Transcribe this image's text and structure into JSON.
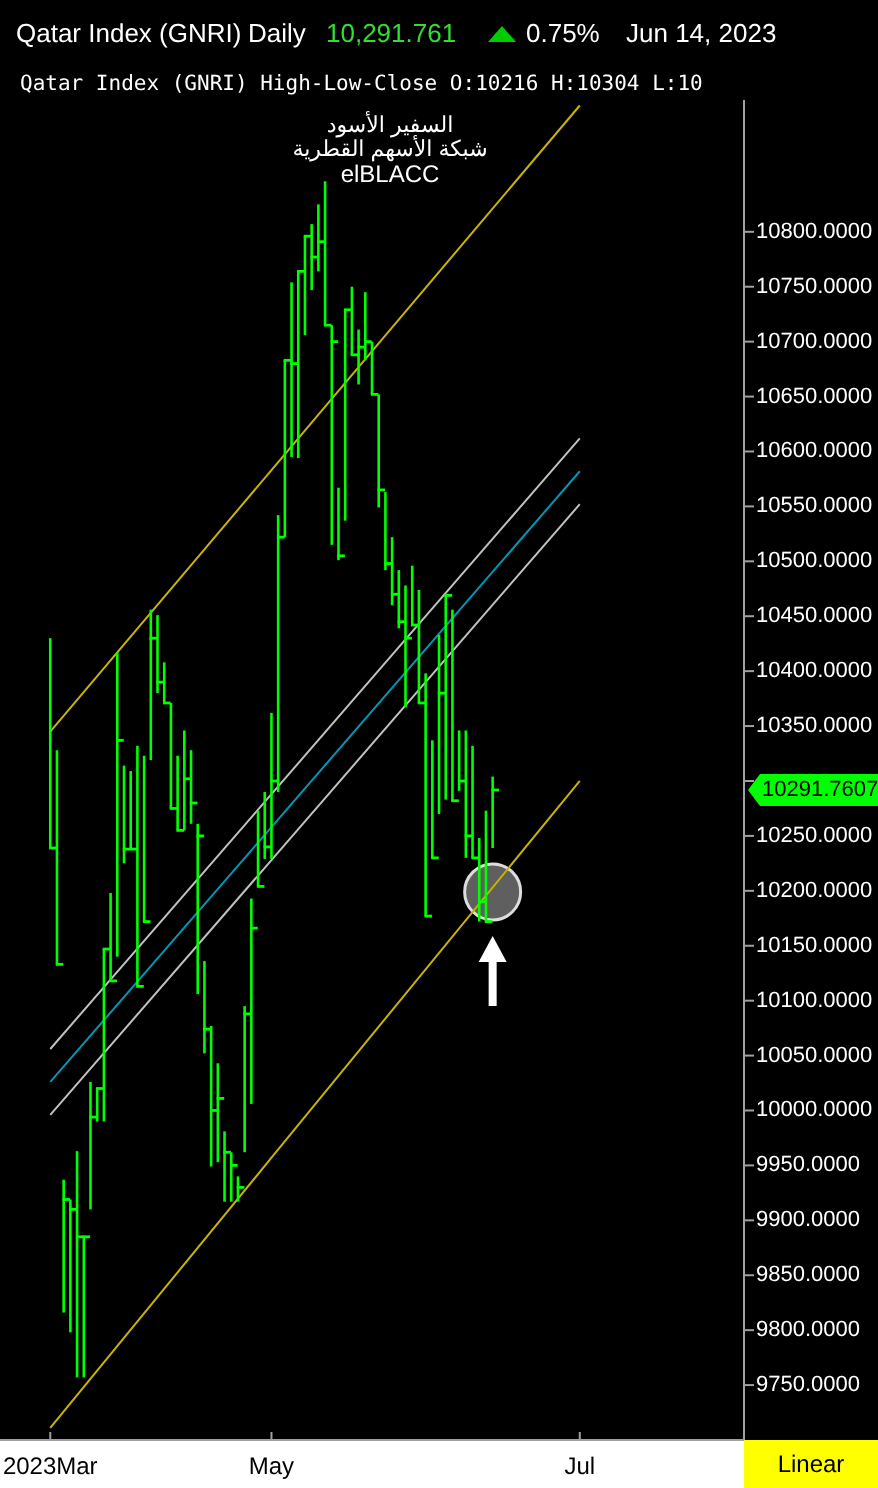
{
  "chart_data": {
    "type": "bar",
    "title": "Qatar Index  (GNRI)",
    "subtitle": "Qatar Index (GNRI) High-Low-Close O:10216 H:10304 L:10",
    "categories": [
      null,
      null,
      null,
      null,
      null,
      null,
      null,
      "2023Mar",
      null,
      null,
      null,
      null,
      null,
      null,
      null,
      null,
      null,
      null,
      null,
      null,
      null,
      null,
      null,
      null,
      null,
      null,
      null,
      null,
      null,
      null,
      null,
      null,
      null,
      null,
      null,
      null,
      null,
      null,
      null,
      null,
      "May",
      null,
      null,
      null,
      null,
      null,
      null,
      null,
      null,
      null,
      null,
      null,
      null,
      null,
      null,
      null,
      null,
      null,
      null,
      null,
      null,
      null,
      null,
      null,
      null,
      null,
      null,
      null,
      null,
      null,
      null,
      null,
      null,
      null,
      null,
      null,
      null,
      null,
      null,
      null,
      null,
      null,
      null,
      null,
      null,
      null,
      "Jul",
      null,
      null,
      null,
      null,
      null,
      null,
      null,
      null,
      null,
      null,
      null,
      null,
      null,
      null,
      null,
      null,
      null,
      null,
      null,
      null,
      null,
      null,
      null,
      null
    ],
    "base": [
      null,
      null,
      null,
      null,
      null,
      null,
      null,
      10239,
      10133,
      9816,
      9798,
      9757,
      9757,
      9910,
      9990,
      9990,
      10118,
      10140,
      10225,
      10238,
      10113,
      10172,
      10319,
      10380,
      10371,
      10275,
      10255,
      10255,
      10261,
      10106,
      10052,
      9949,
      9953,
      9917,
      9917,
      9917,
      9962,
      10006,
      10204,
      10229,
      10229,
      10290,
      10522,
      10595,
      10594,
      10706,
      10747,
      10764,
      10715,
      10515,
      10501,
      10537,
      10688,
      10661,
      10683,
      10652,
      10549,
      10492,
      10460,
      10439,
      10367,
      10442,
      10371,
      10177,
      10230,
      10270,
      10283,
      10282,
      10291,
      10230,
      10230,
      10172,
      10172,
      10239,
      null,
      null,
      null,
      null,
      null,
      null,
      null,
      null,
      null,
      null,
      null,
      null,
      null,
      null,
      null,
      null,
      null,
      null,
      null,
      null,
      null,
      null,
      null,
      null,
      null,
      null,
      null,
      null,
      null,
      null,
      null,
      null,
      null,
      null,
      null,
      null,
      null
    ],
    "color": "#00ff00",
    "values": [
      null,
      null,
      null,
      null,
      null,
      null,
      null,
      191,
      195,
      121,
      121,
      206,
      128,
      116,
      30,
      157,
      80,
      277,
      89,
      71,
      219,
      151,
      137,
      71,
      37,
      96,
      68,
      91,
      67,
      155,
      84,
      128,
      90,
      64,
      45,
      23,
      133,
      187,
      69,
      61,
      133,
      252,
      161,
      159,
      170,
      90,
      60,
      61,
      131,
      200,
      66,
      192,
      62,
      50,
      62,
      48,
      103,
      71,
      62,
      53,
      111,
      54,
      103,
      221,
      107,
      163,
      186,
      174,
      55,
      116,
      102,
      76,
      101,
      65,
      null,
      null,
      null,
      null,
      null,
      null,
      null,
      null,
      null,
      null,
      null,
      null,
      null,
      null,
      null,
      null,
      null,
      null,
      null,
      null,
      null,
      null,
      null,
      null,
      null,
      null,
      null,
      null,
      null,
      null,
      null,
      null,
      null,
      null,
      null,
      null,
      null
    ],
    "series": [
      {
        "type": "scatter",
        "color": "#00ff00",
        "values": [
          null,
          null,
          null,
          null,
          null,
          null,
          null,
          10239,
          10133,
          9919,
          9910,
          9885,
          9885,
          9994,
          10020,
          10147,
          10118,
          10337,
          10238,
          10238,
          10113,
          10172,
          10430,
          10390,
          10371,
          10275,
          10255,
          10302,
          10280,
          10250,
          10074,
          10000,
          10011,
          9962,
          9950,
          9930,
          10088,
          10166,
          10204,
          10240,
          10300,
          10522,
          10683,
          10680,
          10764,
          10796,
          10777,
          10791,
          10715,
          10700,
          10505,
          10729,
          10688,
          10695,
          10700,
          10652,
          10565,
          10498,
          10470,
          10445,
          10430,
          10442,
          10371,
          10177,
          10230,
          10380,
          10469,
          10282,
          10300,
          10250,
          10230,
          10190,
          10172,
          10291.7607,
          null,
          null,
          null,
          null,
          null,
          null,
          null,
          null,
          null,
          null,
          null,
          null,
          null,
          null,
          null,
          null,
          null,
          null,
          null,
          null,
          null,
          null,
          null,
          null,
          null,
          null,
          null,
          null,
          null,
          null,
          null,
          null,
          null,
          null,
          null,
          null,
          null
        ]
      },
      {
        "type": "line",
        "color": "#c8b400",
        "x": [
          "2023Mar",
          "May",
          "Jul"
        ],
        "values": [
          10345,
          10583,
          10915
        ]
      },
      {
        "type": "line",
        "color": "#c8b400",
        "x": [
          "2023Mar",
          "May",
          "Jul"
        ],
        "values": [
          9711,
          9957,
          10300
        ]
      },
      {
        "type": "line",
        "color": "#c0c0c0",
        "x": [
          "2023Mar",
          "May",
          "Jul"
        ],
        "values": [
          10056,
          10288,
          10612
        ]
      },
      {
        "type": "line",
        "color": "#0096b4",
        "x": [
          "2023Mar",
          "May",
          "Jul"
        ],
        "values": [
          10026,
          10258,
          10582
        ]
      },
      {
        "type": "line",
        "color": "#c0c0c0",
        "x": [
          "2023Mar",
          "May",
          "Jul"
        ],
        "values": [
          9996,
          10228,
          10552
        ]
      }
    ],
    "ylim": [
      9700,
      10920
    ],
    "yticks": [
      {
        "value": 9750,
        "label": "9750.0000"
      },
      {
        "value": 9800,
        "label": "9800.0000"
      },
      {
        "value": 9850,
        "label": "9850.0000"
      },
      {
        "value": 9900,
        "label": "9900.0000"
      },
      {
        "value": 9950,
        "label": "9950.0000"
      },
      {
        "value": 10000,
        "label": "10000.0000"
      },
      {
        "value": 10050,
        "label": "10050.0000"
      },
      {
        "value": 10100,
        "label": "10100.0000"
      },
      {
        "value": 10150,
        "label": "10150.0000"
      },
      {
        "value": 10200,
        "label": "10200.0000"
      },
      {
        "value": 10250,
        "label": "10250.0000"
      },
      {
        "value": 10300,
        "label": null
      },
      {
        "value": 10350,
        "label": "10350.0000"
      },
      {
        "value": 10400,
        "label": "10400.0000"
      },
      {
        "value": 10450,
        "label": "10450.0000"
      },
      {
        "value": 10500,
        "label": "10500.0000"
      },
      {
        "value": 10550,
        "label": "10550.0000"
      },
      {
        "value": 10600,
        "label": "10600.0000"
      },
      {
        "value": 10650,
        "label": "10650.0000"
      },
      {
        "value": 10700,
        "label": "10700.0000"
      },
      {
        "value": 10750,
        "label": "10750.0000"
      },
      {
        "value": 10800,
        "label": "10800.0000"
      }
    ],
    "annotations": [
      "Daily",
      "10,291.761",
      "0.75%",
      "Jun 14, 2023",
      "السفير الأسود",
      "شبكة الأسهم القطرية",
      "elBLACC",
      "10291.7607",
      "Linear"
    ]
  }
}
